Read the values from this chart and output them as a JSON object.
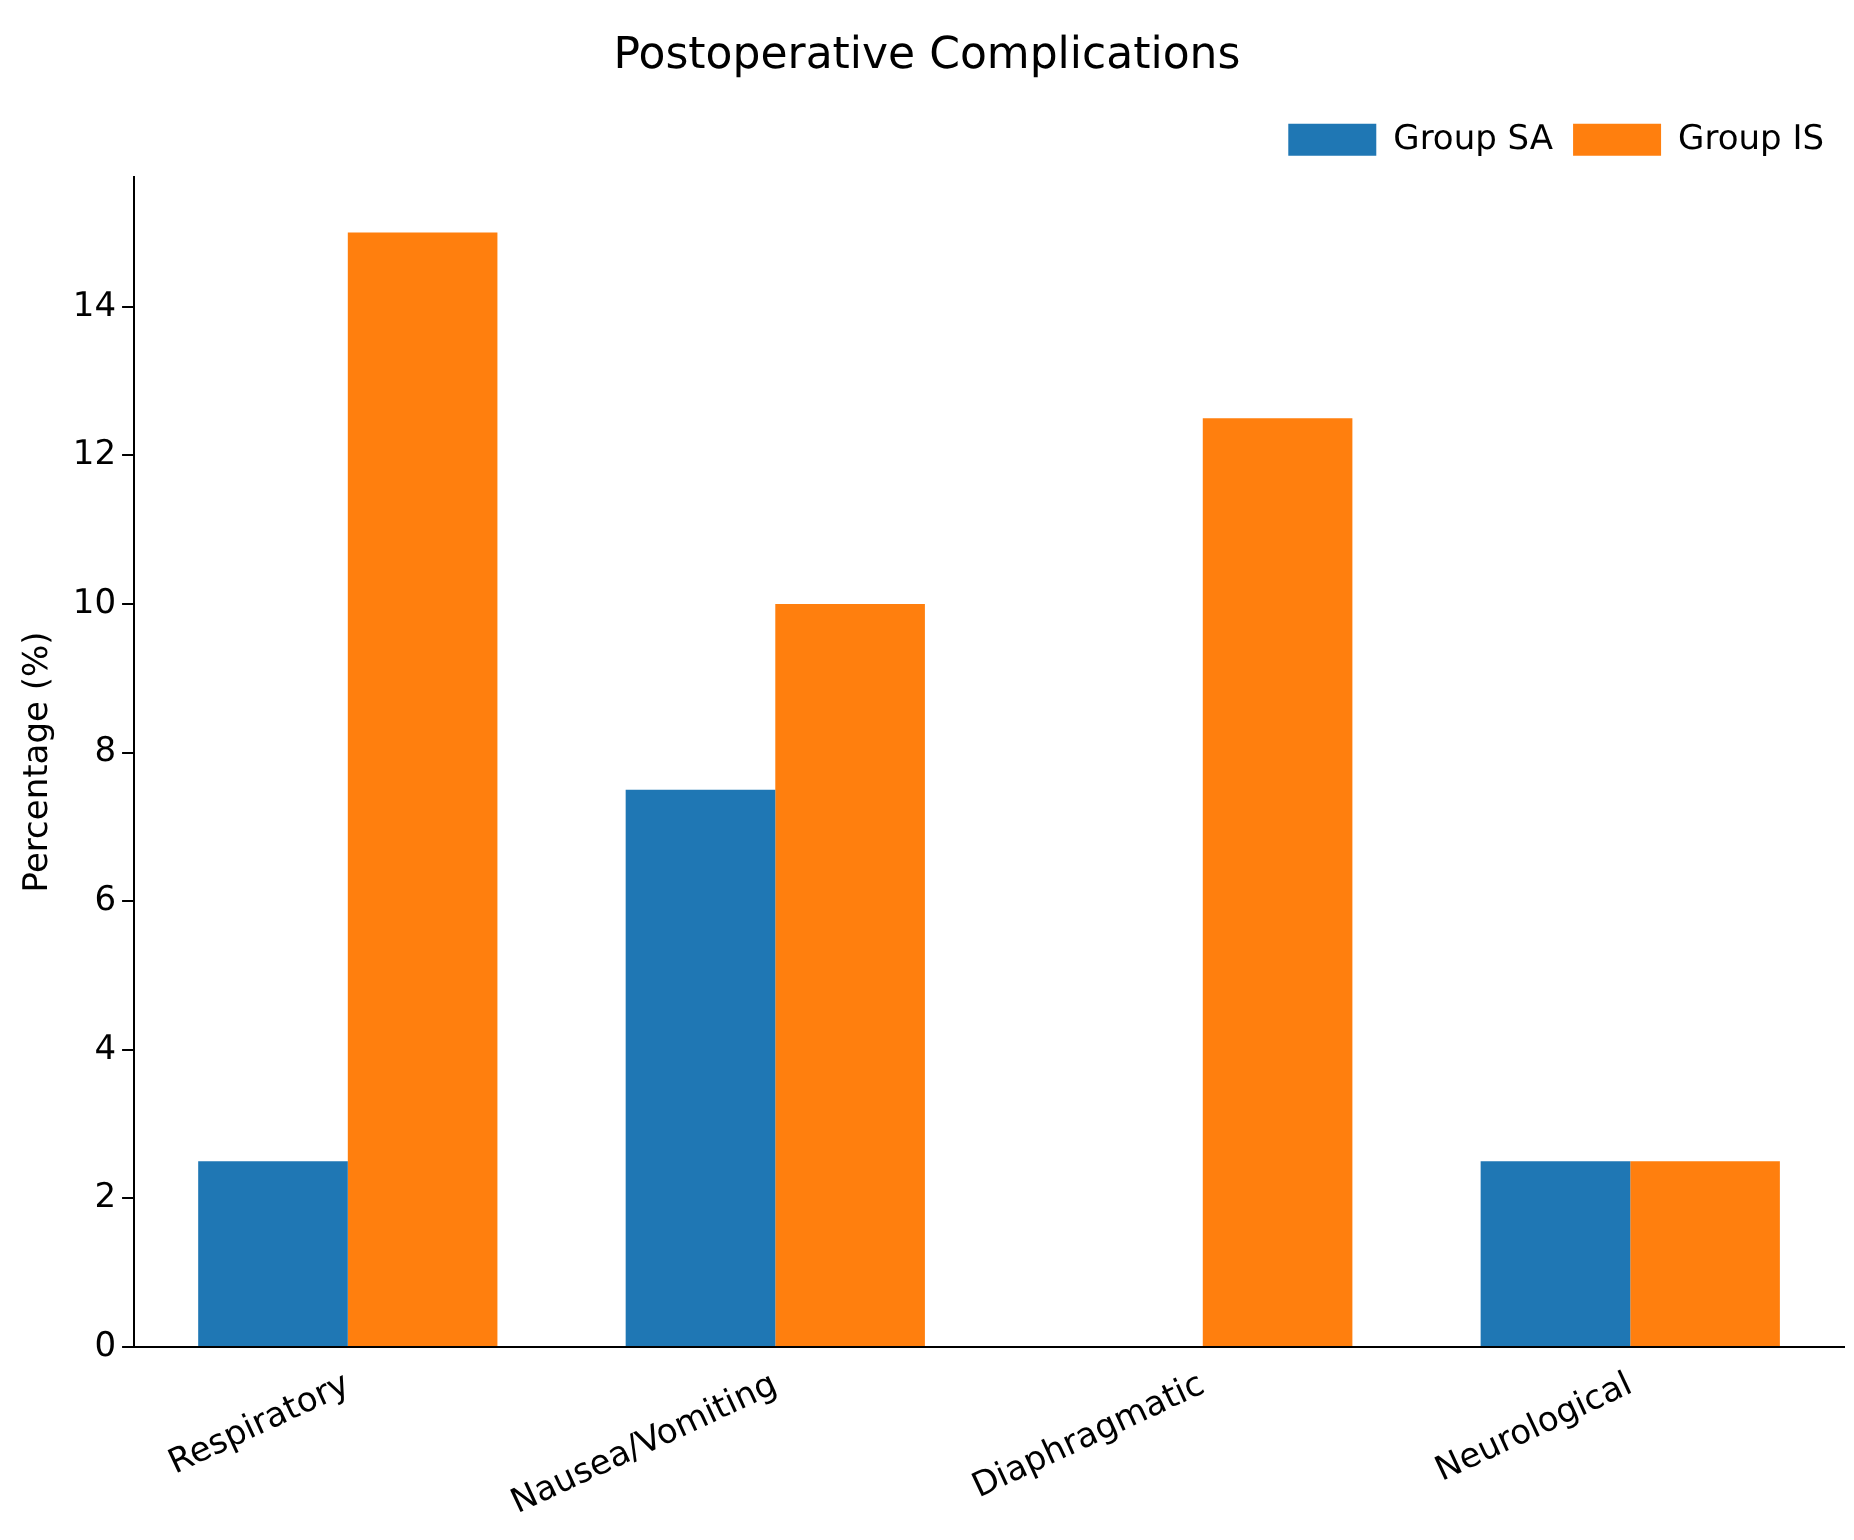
{
  "chart_data": {
    "type": "bar",
    "title": "Postoperative Complications",
    "ylabel": "Percentage (%)",
    "categories": [
      "Respiratory",
      "Nausea/Vomiting",
      "Diaphragmatic",
      "Neurological"
    ],
    "series": [
      {
        "name": "Group SA",
        "color": "#1f77b4",
        "values": [
          2.5,
          7.5,
          0,
          2.5
        ]
      },
      {
        "name": "Group IS",
        "color": "#ff7f0e",
        "values": [
          15,
          10,
          12.5,
          2.5
        ]
      }
    ],
    "ylim": [
      0,
      15.75
    ],
    "yticks": [
      0,
      2,
      4,
      6,
      8,
      10,
      12,
      14
    ],
    "grid": false,
    "legend": "top right"
  }
}
